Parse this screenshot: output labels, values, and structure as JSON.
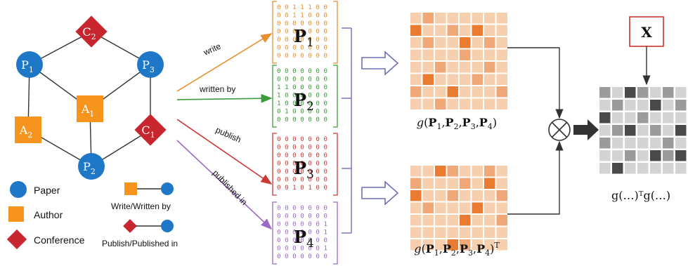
{
  "graph": {
    "nodes": [
      {
        "id": "C2",
        "type": "conference",
        "base": "C",
        "sub": "2"
      },
      {
        "id": "P1",
        "type": "paper",
        "base": "P",
        "sub": "1"
      },
      {
        "id": "P3",
        "type": "paper",
        "base": "P",
        "sub": "3"
      },
      {
        "id": "A1",
        "type": "author",
        "base": "A",
        "sub": "1"
      },
      {
        "id": "A2",
        "type": "author",
        "base": "A",
        "sub": "2"
      },
      {
        "id": "C1",
        "type": "conference",
        "base": "C",
        "sub": "1"
      },
      {
        "id": "P2",
        "type": "paper",
        "base": "P",
        "sub": "2"
      }
    ],
    "edges": [
      [
        "C2",
        "P1"
      ],
      [
        "C2",
        "P3"
      ],
      [
        "P1",
        "A1"
      ],
      [
        "P1",
        "A2"
      ],
      [
        "P3",
        "A1"
      ],
      [
        "P3",
        "C1"
      ],
      [
        "A1",
        "P2"
      ],
      [
        "A2",
        "P2"
      ],
      [
        "C1",
        "P2"
      ]
    ]
  },
  "legend": {
    "paper": "Paper",
    "author": "Author",
    "conference": "Conference",
    "write_relation": "Write/Written by",
    "publish_relation": "Publish/Published  in"
  },
  "relations": [
    {
      "label": "write",
      "color": "#e8902e",
      "matrix_base": "P",
      "matrix_sub": "1",
      "rows": [
        "0 0 1 1 1 0 0",
        "0 0 1 1 0 0 0",
        "0 0 0 0 0 0 0",
        "0 0 0 0 0 0 0",
        "0 0 0 0 0 0 0",
        "0 0 0 0 0 0 0",
        "0 0 0 0 0 0 0"
      ]
    },
    {
      "label": "written by",
      "color": "#3c9a3c",
      "matrix_base": "P",
      "matrix_sub": "2",
      "rows": [
        "0 0 0 0 0 0 0",
        "0 0 0 0 0 0 0",
        "1 1 0 0 0 0 0",
        "1 0 0 0 0 0 0",
        "1 0 0 0 0 0 0",
        "0 1 0 0 0 0 0",
        "0 0 0 0 0 0 0"
      ]
    },
    {
      "label": "publish",
      "color": "#cc3a38",
      "matrix_base": "P",
      "matrix_sub": "3",
      "rows": [
        "0 0 0 0 0 0 0",
        "0 0 0 0 0 0 0",
        "0 0 0 0 0 0 0",
        "0 0 0 0 0 0 0",
        "0 0 0 0 0 0 0",
        "0 0 0 0 0 0 0",
        "0 0 1 0 1 0 0"
      ]
    },
    {
      "label": "published in",
      "color": "#9b6ac4",
      "matrix_base": "P",
      "matrix_sub": "4",
      "rows": [
        "0 0 0 0 0 0 0",
        "0 0 0 0 0 0 0",
        "0 0 0 0 0 0 1",
        "0 0 0 0 0 0 1",
        "0 0 0 0 0 0 0",
        "0 0 0 0 0 0 1",
        "0 0 0 0 0 0 0"
      ]
    }
  ],
  "products": {
    "top_caption": {
      "fn": "g",
      "args": [
        "P1",
        "P2",
        "P3",
        "P4"
      ],
      "sup": ""
    },
    "bottom_caption": {
      "fn": "g",
      "args": [
        "P1",
        "P2",
        "P3",
        "P4"
      ],
      "sup": "T"
    },
    "top_grid": [
      [
        1,
        2,
        1,
        1,
        1,
        1,
        1,
        1
      ],
      [
        3,
        1,
        1,
        2,
        1,
        3,
        1,
        1
      ],
      [
        1,
        2,
        1,
        1,
        3,
        1,
        2,
        1
      ],
      [
        1,
        1,
        1,
        1,
        2,
        1,
        1,
        1
      ],
      [
        1,
        1,
        2,
        1,
        1,
        1,
        2,
        1
      ],
      [
        1,
        3,
        1,
        1,
        1,
        2,
        1,
        1
      ],
      [
        2,
        1,
        1,
        3,
        1,
        1,
        1,
        2
      ],
      [
        1,
        1,
        2,
        1,
        1,
        1,
        1,
        1
      ]
    ],
    "bottom_grid": [
      [
        1,
        1,
        3,
        2,
        1,
        1,
        2,
        1
      ],
      [
        2,
        1,
        1,
        1,
        2,
        1,
        3,
        1
      ],
      [
        3,
        1,
        1,
        2,
        1,
        1,
        1,
        2
      ],
      [
        1,
        2,
        1,
        1,
        1,
        3,
        1,
        1
      ],
      [
        1,
        1,
        1,
        1,
        3,
        1,
        1,
        2
      ],
      [
        1,
        1,
        1,
        1,
        1,
        1,
        1,
        1
      ],
      [
        1,
        1,
        1,
        3,
        2,
        1,
        1,
        1
      ]
    ],
    "colors": {
      "1": "#f6cfae",
      "2": "#f0a878",
      "3": "#ea7c32"
    }
  },
  "feature": {
    "label": "X",
    "border_color": "#c8362e"
  },
  "result": {
    "caption": "g(…)ᵀg(…)",
    "grid": [
      [
        2,
        1,
        3,
        2,
        1,
        2,
        1,
        1
      ],
      [
        1,
        2,
        1,
        1,
        3,
        1,
        2,
        1
      ],
      [
        3,
        1,
        1,
        2,
        1,
        1,
        1,
        3
      ],
      [
        1,
        2,
        3,
        1,
        2,
        1,
        3,
        1
      ],
      [
        2,
        1,
        1,
        1,
        1,
        2,
        1,
        2
      ],
      [
        1,
        1,
        2,
        1,
        3,
        2,
        3,
        1
      ],
      [
        1,
        3,
        1,
        1,
        1,
        1,
        1,
        1
      ]
    ],
    "colors": {
      "1": "#d3d3d3",
      "2": "#9b9b9b",
      "3": "#4a4a4a"
    }
  },
  "colors": {
    "paper": "#1f77c8",
    "author": "#f7941d",
    "conference": "#c8262e",
    "arrow_hollow": "#6f6fb8",
    "bracket": "#6f6fb8"
  }
}
